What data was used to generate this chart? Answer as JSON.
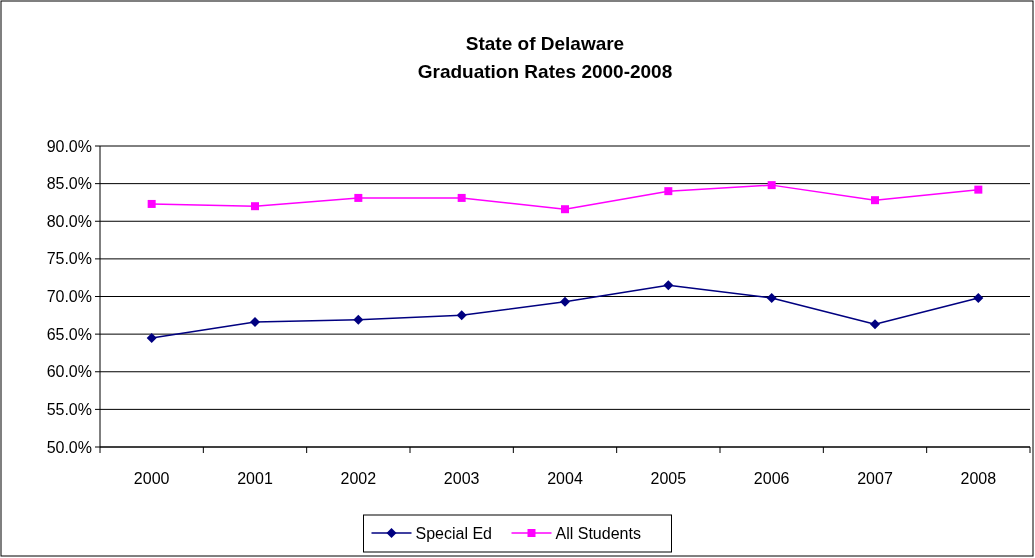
{
  "chart_data": {
    "type": "line",
    "title": "State of Delaware\nGraduation Rates 2000-2008",
    "categories": [
      "2000",
      "2001",
      "2002",
      "2003",
      "2004",
      "2005",
      "2006",
      "2007",
      "2008"
    ],
    "series": [
      {
        "name": "Special Ed",
        "color": "#000080",
        "marker": "diamond",
        "values": [
          64.5,
          66.6,
          66.9,
          67.5,
          69.3,
          71.5,
          69.8,
          66.3,
          69.8
        ]
      },
      {
        "name": "All Students",
        "color": "#ff00ff",
        "marker": "square",
        "values": [
          82.3,
          82.0,
          83.1,
          83.1,
          81.6,
          84.0,
          84.8,
          82.8,
          84.2
        ]
      }
    ],
    "ylim": [
      50,
      90
    ],
    "yticks": [
      {
        "value": 50,
        "label": "50.0%"
      },
      {
        "value": 55,
        "label": "55.0%"
      },
      {
        "value": 60,
        "label": "60.0%"
      },
      {
        "value": 65,
        "label": "65.0%"
      },
      {
        "value": 70,
        "label": "70.0%"
      },
      {
        "value": 75,
        "label": "75.0%"
      },
      {
        "value": 80,
        "label": "80.0%"
      },
      {
        "value": 85,
        "label": "85.0%"
      },
      {
        "value": 90,
        "label": "90.0%"
      }
    ],
    "grid": "y",
    "legend": "bottom",
    "line_style": "solid"
  }
}
